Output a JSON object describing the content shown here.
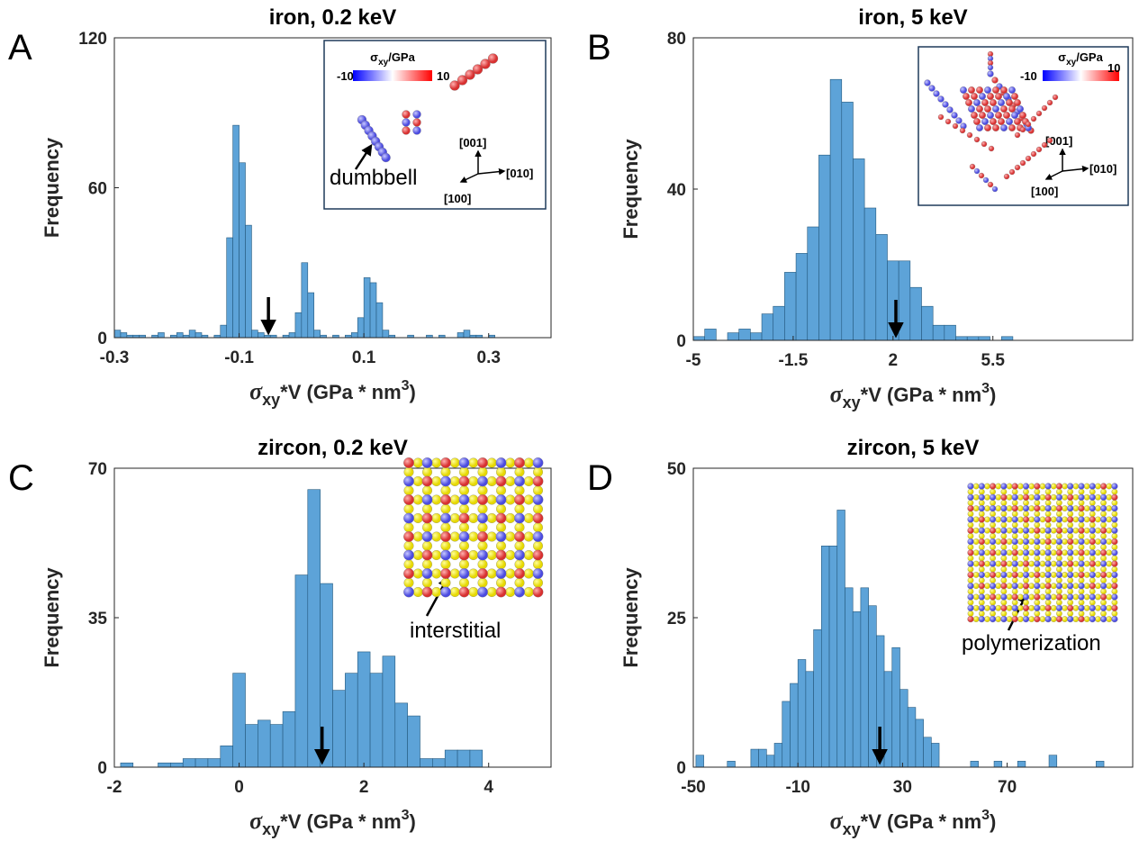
{
  "chart_data": [
    {
      "type": "histogram",
      "panel": "A",
      "title": "iron, 0.2 keV",
      "ylabel": "Frequency",
      "xlabel": [
        "σ",
        "xy",
        "*V (GPa * nm",
        "3",
        ")"
      ],
      "bins": [
        -0.3,
        -0.29,
        -0.28,
        -0.27,
        -0.26,
        -0.25,
        -0.24,
        -0.23,
        -0.22,
        -0.21,
        -0.2,
        -0.19,
        -0.18,
        -0.17,
        -0.16,
        -0.15,
        -0.14,
        -0.13,
        -0.12,
        -0.11,
        -0.1,
        -0.09,
        -0.08,
        -0.07,
        -0.06,
        -0.05,
        -0.04,
        -0.03,
        -0.02,
        -0.01,
        0,
        0.01,
        0.02,
        0.03,
        0.04,
        0.05,
        0.06,
        0.07,
        0.08,
        0.09,
        0.1,
        0.11,
        0.12,
        0.13,
        0.14,
        0.15,
        0.16,
        0.17,
        0.18,
        0.19,
        0.2,
        0.21,
        0.22,
        0.23,
        0.24,
        0.25,
        0.26,
        0.27,
        0.28,
        0.29,
        0.3,
        0.31
      ],
      "values": [
        3,
        2,
        1,
        1,
        1,
        0,
        1,
        2,
        0,
        1,
        2,
        1,
        3,
        2,
        1,
        0,
        1,
        5,
        40,
        85,
        70,
        45,
        3,
        2,
        1,
        1,
        0,
        1,
        2,
        10,
        30,
        18,
        3,
        1,
        0,
        1,
        0,
        1,
        2,
        8,
        24,
        22,
        14,
        3,
        1,
        0,
        0,
        1,
        0,
        0,
        1,
        0,
        1,
        0,
        0,
        2,
        3,
        1,
        1,
        0,
        1
      ],
      "color": "#5da3d8",
      "xlim": [
        -0.3,
        0.4
      ],
      "xticks": [
        -0.3,
        -0.1,
        0.1,
        0.3
      ],
      "ylim": [
        0,
        120
      ],
      "yticks": [
        0,
        60,
        120
      ],
      "arrow_x": -0.053,
      "inset": {
        "colorbar_label": [
          "σ",
          "xy",
          "/GPa"
        ],
        "colorbar_ticks": [
          -10,
          10
        ],
        "directions": [
          "[001]",
          "[010]",
          "[100]"
        ],
        "label": "dumbbell"
      }
    },
    {
      "type": "histogram",
      "panel": "B",
      "title": "iron, 5 keV",
      "ylabel": "Frequency",
      "xlabel": [
        "σ",
        "xy",
        "*V (GPa * nm",
        "3",
        ")"
      ],
      "bins": [
        -5,
        -4.6,
        -4.2,
        -3.8,
        -3.4,
        -3,
        -2.6,
        -2.2,
        -1.8,
        -1.4,
        -1,
        -0.6,
        -0.2,
        0.2,
        0.6,
        1,
        1.4,
        1.8,
        2.2,
        2.6,
        3,
        3.4,
        3.8,
        4.2,
        4.6,
        5,
        5.4,
        5.8,
        6.2
      ],
      "values": [
        1,
        3,
        0,
        2,
        3,
        2,
        7,
        9,
        18,
        23,
        30,
        49,
        69,
        63,
        48,
        35,
        28,
        21,
        21,
        14,
        9,
        4,
        4,
        1,
        1,
        1,
        0,
        1
      ],
      "color": "#5da3d8",
      "xlim": [
        -5,
        10.4
      ],
      "xticks": [
        -5,
        -1.5,
        2,
        5.5
      ],
      "ylim": [
        0,
        80
      ],
      "yticks": [
        0,
        40,
        80
      ],
      "arrow_x": 2.1,
      "inset": {
        "colorbar_label": [
          "σ",
          "xy",
          "/GPa"
        ],
        "colorbar_ticks": [
          -10,
          10
        ],
        "directions": [
          "[001]",
          "[010]",
          "[100]"
        ]
      }
    },
    {
      "type": "histogram",
      "panel": "C",
      "title": "zircon, 0.2 keV",
      "ylabel": "Frequency",
      "xlabel": [
        "σ",
        "xy",
        "*V (GPa * nm",
        "3",
        ")"
      ],
      "bins": [
        -1.9,
        -1.7,
        -1.5,
        -1.3,
        -1.1,
        -0.9,
        -0.7,
        -0.5,
        -0.3,
        -0.1,
        0.1,
        0.3,
        0.5,
        0.7,
        0.9,
        1.1,
        1.3,
        1.5,
        1.7,
        1.9,
        2.1,
        2.3,
        2.5,
        2.7,
        2.9,
        3.1,
        3.3,
        3.5,
        3.7,
        3.9
      ],
      "values": [
        1,
        0,
        0,
        1,
        1,
        2,
        2,
        2,
        5,
        22,
        10,
        11,
        10,
        13,
        45,
        65,
        43,
        18,
        22,
        27,
        22,
        26,
        15,
        12,
        2,
        2,
        4,
        4,
        4
      ],
      "color": "#5da3d8",
      "xlim": [
        -2,
        5
      ],
      "xticks": [
        -2,
        0,
        2,
        4
      ],
      "ylim": [
        0,
        70
      ],
      "yticks": [
        0,
        35,
        70
      ],
      "arrow_x": 1.33,
      "inset": {
        "label": "interstitial"
      }
    },
    {
      "type": "histogram",
      "panel": "D",
      "title": "zircon, 5 keV",
      "ylabel": "Frequency",
      "xlabel": [
        "σ",
        "xy",
        "*V (GPa * nm",
        "3",
        ")"
      ],
      "bins": [
        -49,
        -46,
        -43,
        -40,
        -37,
        -34,
        -31,
        -28,
        -25,
        -22,
        -19,
        -16,
        -13,
        -10,
        -7,
        -4,
        -1,
        2,
        5,
        8,
        11,
        14,
        17,
        20,
        23,
        26,
        29,
        32,
        35,
        38,
        41,
        44,
        47,
        50,
        53,
        56,
        59,
        62,
        65,
        68,
        71,
        74,
        77,
        80,
        83,
        86,
        89,
        92,
        95,
        98,
        101,
        104,
        107
      ],
      "values": [
        2,
        0,
        0,
        0,
        1,
        0,
        0,
        3,
        3,
        2,
        4,
        11,
        14,
        18,
        16,
        23,
        37,
        37,
        43,
        30,
        26,
        30,
        27,
        22,
        16,
        20,
        13,
        10,
        8,
        5,
        4,
        0,
        0,
        0,
        0,
        1,
        0,
        0,
        1,
        0,
        0,
        1,
        0,
        0,
        0,
        2,
        0,
        0,
        0,
        0,
        0,
        1
      ],
      "color": "#5da3d8",
      "xlim": [
        -50,
        118
      ],
      "xticks": [
        -50,
        -10,
        30,
        70
      ],
      "ylim": [
        0,
        50
      ],
      "yticks": [
        0,
        25,
        50
      ],
      "arrow_x": 21.3,
      "inset": {
        "label": "polymerization"
      }
    }
  ]
}
